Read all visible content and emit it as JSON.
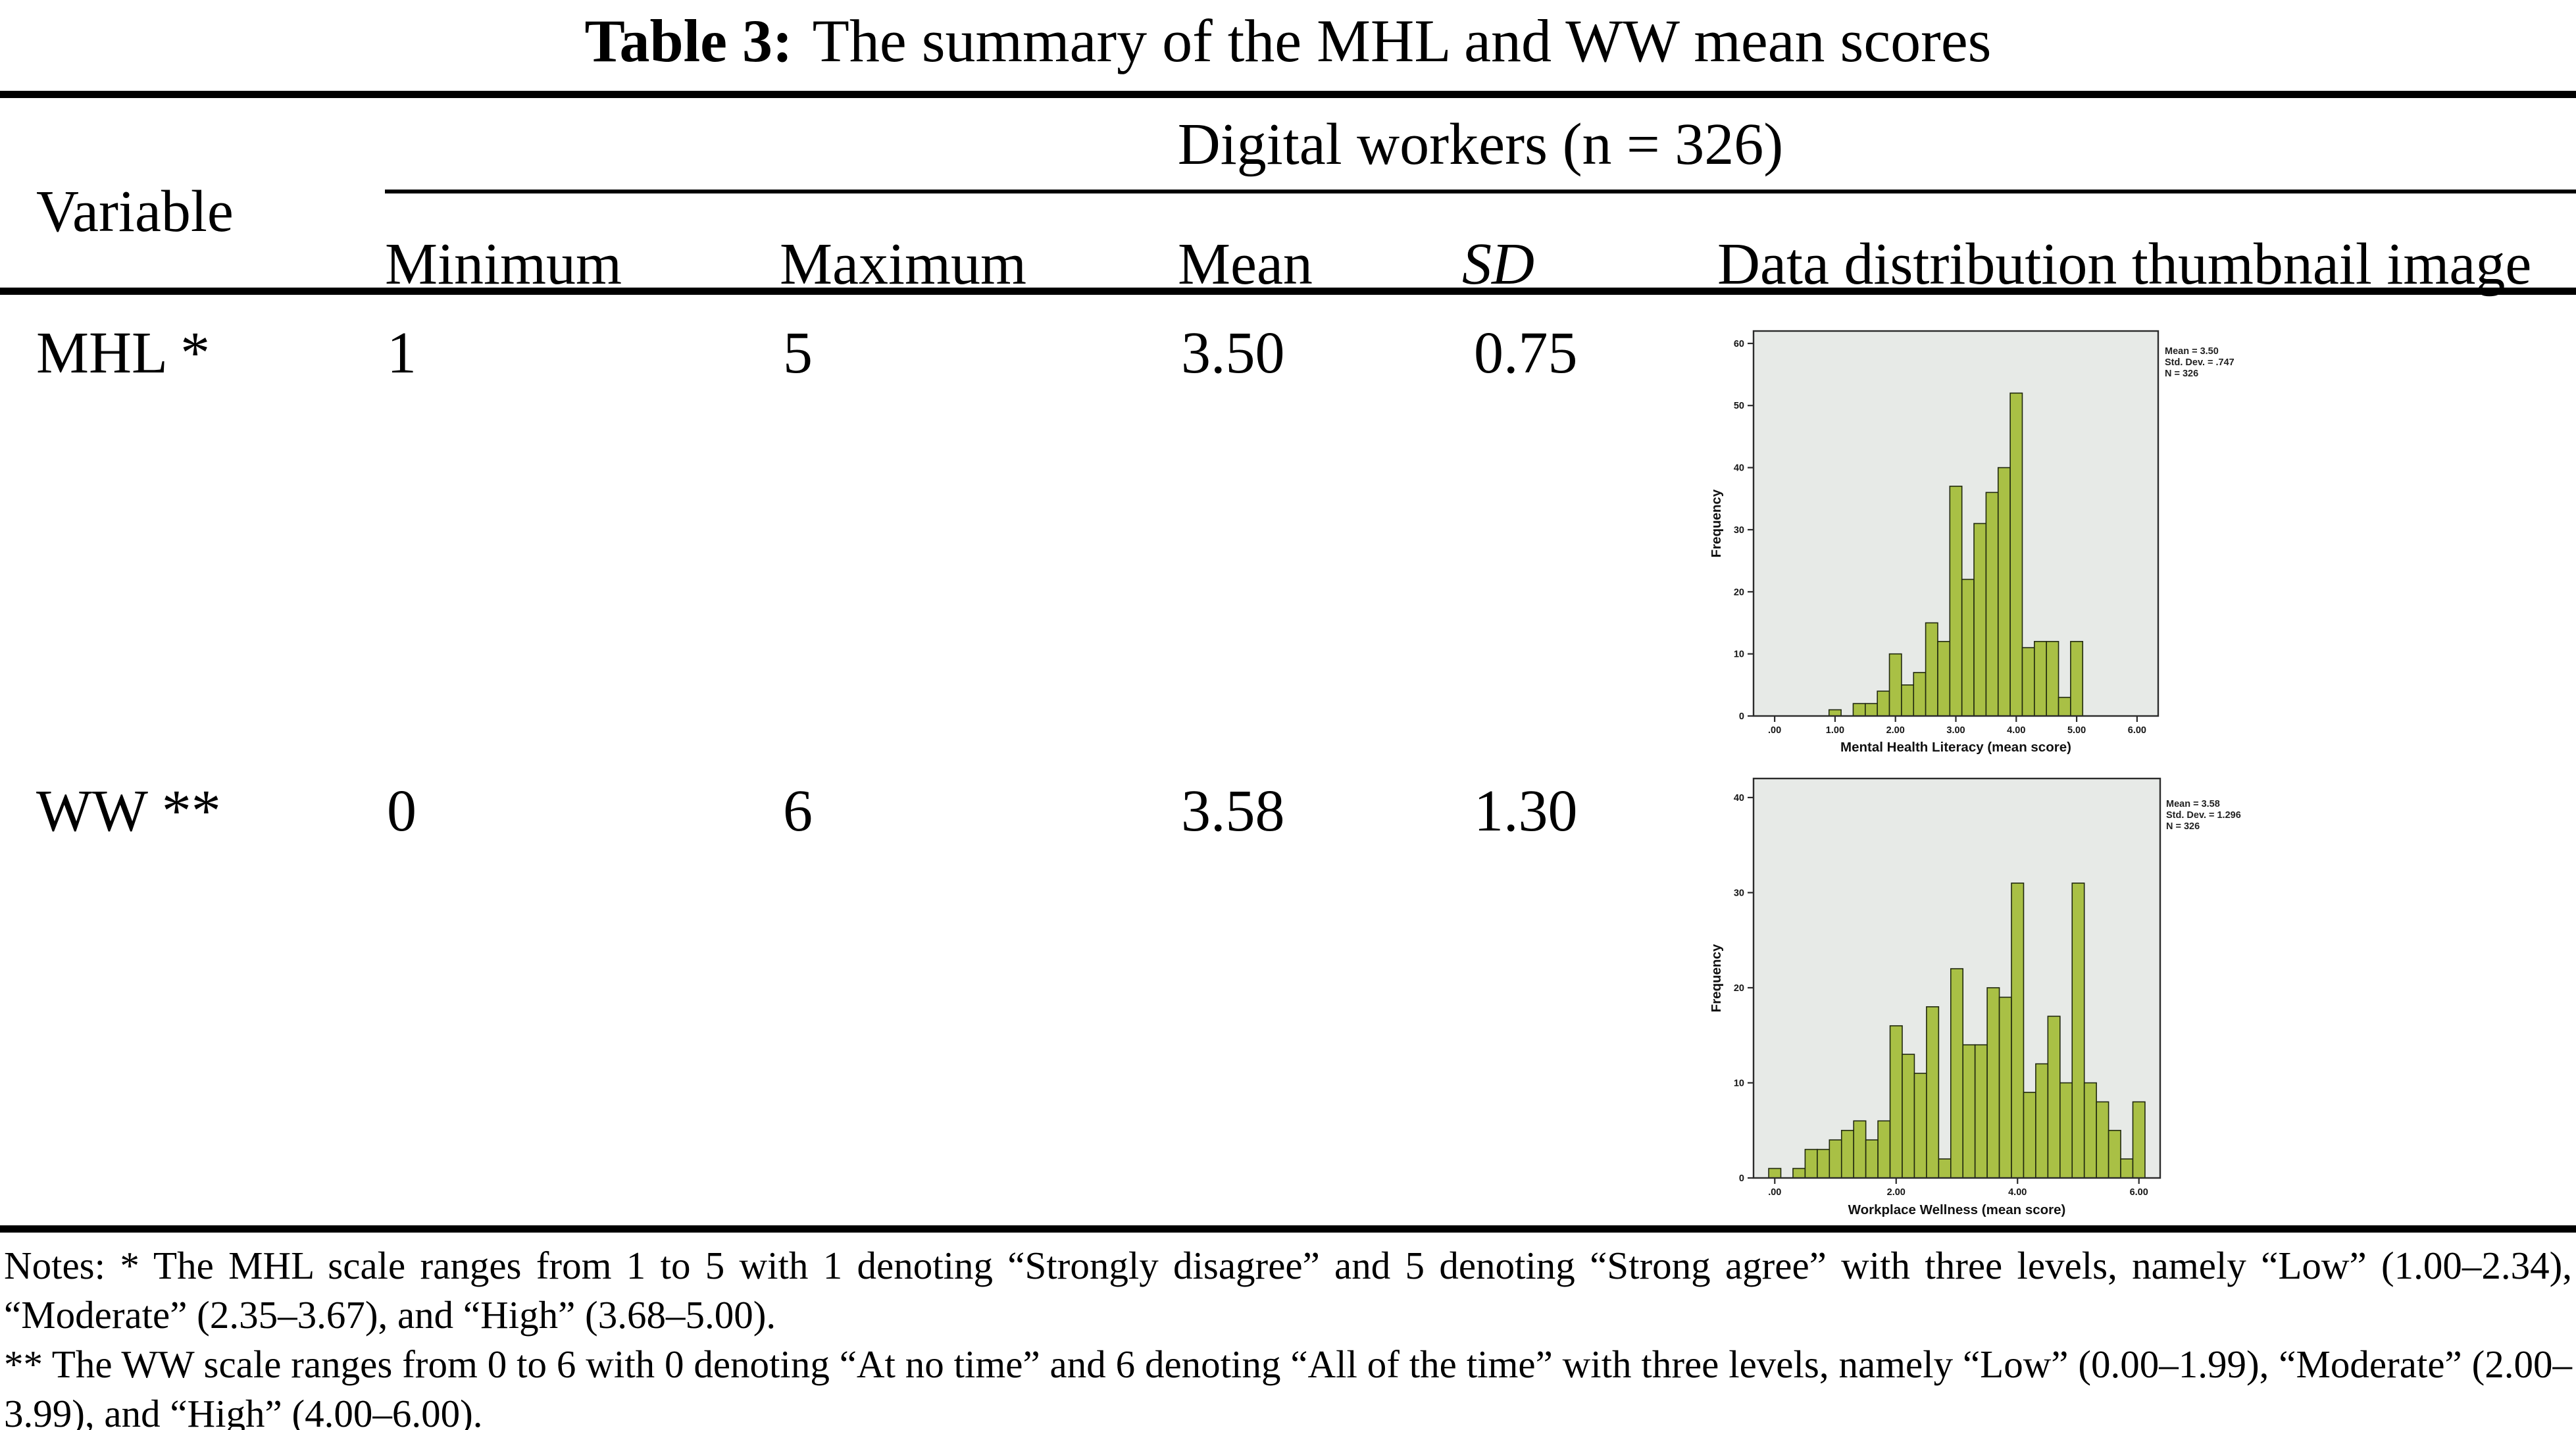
{
  "title": {
    "label": "Table 3:",
    "text": "The summary of the MHL and WW mean scores"
  },
  "table": {
    "group_header": "Digital workers (n = 326)",
    "columns": {
      "variable": "Variable",
      "minimum": "Minimum",
      "maximum": "Maximum",
      "mean": "Mean",
      "sd": "SD",
      "thumbnail": "Data distribution thumbnail image"
    },
    "rows": [
      {
        "variable": "MHL *",
        "minimum": "1",
        "maximum": "5",
        "mean": "3.50",
        "sd": "0.75"
      },
      {
        "variable": "WW **",
        "minimum": "0",
        "maximum": "6",
        "mean": "3.58",
        "sd": "1.30"
      }
    ]
  },
  "notes": {
    "note1": "Notes: * The MHL scale ranges from 1 to 5 with 1 denoting “Strongly disagree” and 5 denoting “Strong agree” with three levels, namely “Low” (1.00–2.34), “Moderate” (2.35–3.67), and “High” (3.68–5.00).",
    "note2": "** The WW scale ranges from 0 to 6 with 0 denoting “At no time” and 6 denoting “All of the time” with three levels, namely “Low” (0.00–1.99), “Moderate” (2.00–3.99), and “High” (4.00–6.00)."
  },
  "chart_data": [
    {
      "type": "bar",
      "name": "MHL histogram thumbnail",
      "title": "",
      "xlabel": "Mental Health Literacy (mean score)",
      "ylabel": "Frequency",
      "stats": [
        "Mean = 3.50",
        "Std. Dev. = .747",
        "N = 326"
      ],
      "legend_position": "top-right-outside",
      "bin_start": 1.0,
      "bin_width": 0.2,
      "values": [
        1,
        0,
        2,
        2,
        4,
        10,
        5,
        7,
        15,
        12,
        37,
        22,
        31,
        36,
        40,
        52,
        11,
        12,
        12,
        3,
        12
      ],
      "xlim": [
        -0.35,
        6.35
      ],
      "ylim": [
        0,
        62
      ],
      "yticks": [
        0,
        10,
        20,
        30,
        40,
        50,
        60
      ],
      "xticks": [
        0,
        1,
        2,
        3,
        4,
        5,
        6
      ],
      "xtick_labels": [
        ".00",
        "1.00",
        "2.00",
        "3.00",
        "4.00",
        "5.00",
        "6.00"
      ],
      "grid": false,
      "bar_fill": "#a9c045",
      "bar_stroke": "#20280f",
      "plot_bg": "#e7eae7"
    },
    {
      "type": "bar",
      "name": "WW histogram thumbnail",
      "title": "",
      "xlabel": "Workplace Wellness (mean score)",
      "ylabel": "Frequency",
      "stats": [
        "Mean = 3.58",
        "Std. Dev. = 1.296",
        "N = 326"
      ],
      "legend_position": "top-right-outside",
      "bin_start": 0.0,
      "bin_width": 0.2,
      "values": [
        1,
        0,
        1,
        3,
        3,
        4,
        5,
        6,
        4,
        6,
        16,
        13,
        11,
        18,
        2,
        22,
        14,
        14,
        20,
        19,
        31,
        9,
        12,
        17,
        10,
        31,
        10,
        8,
        5,
        2,
        8
      ],
      "xlim": [
        -0.35,
        6.35
      ],
      "ylim": [
        0,
        42
      ],
      "yticks": [
        0,
        10,
        20,
        30,
        40
      ],
      "xticks": [
        0,
        2,
        4,
        6
      ],
      "xtick_labels": [
        ".00",
        "2.00",
        "4.00",
        "6.00"
      ],
      "grid": false,
      "bar_fill": "#a9c045",
      "bar_stroke": "#20280f",
      "plot_bg": "#e7eae7"
    }
  ]
}
